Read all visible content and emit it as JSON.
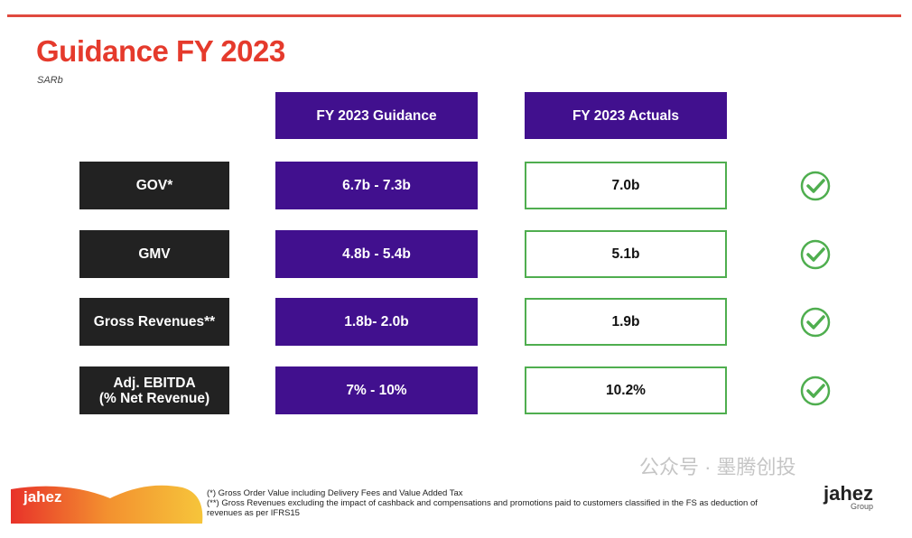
{
  "title": "Guidance FY 2023",
  "unit": "SARb",
  "headers": {
    "guidance": "FY 2023 Guidance",
    "actuals": "FY 2023 Actuals"
  },
  "rows": [
    {
      "label": "GOV*",
      "guidance": "6.7b - 7.3b",
      "actual": "7.0b",
      "status": "check-icon"
    },
    {
      "label": "GMV",
      "guidance": "4.8b - 5.4b",
      "actual": "5.1b",
      "status": "check-icon"
    },
    {
      "label": "Gross Revenues**",
      "guidance": "1.8b- 2.0b",
      "actual": "1.9b",
      "status": "check-icon"
    },
    {
      "label": "Adj. EBITDA\n(% Net Revenue)",
      "guidance": "7% - 10%",
      "actual": "10.2%",
      "status": "check-icon"
    }
  ],
  "footnotes": [
    "(*) Gross Order Value including Delivery Fees and Value Added Tax",
    "(**) Gross Revenues excluding the impact of cashback and compensations and promotions paid to customers classified in the FS as deduction of revenues as per IFRS15"
  ],
  "logo_left": "jahez",
  "logo_right": {
    "name": "jahez",
    "sub": "Group"
  },
  "watermark": "公众号 · 墨腾创投",
  "colors": {
    "accent": "#e53a2c",
    "purple": "#41108e",
    "green": "#4fae4f"
  }
}
